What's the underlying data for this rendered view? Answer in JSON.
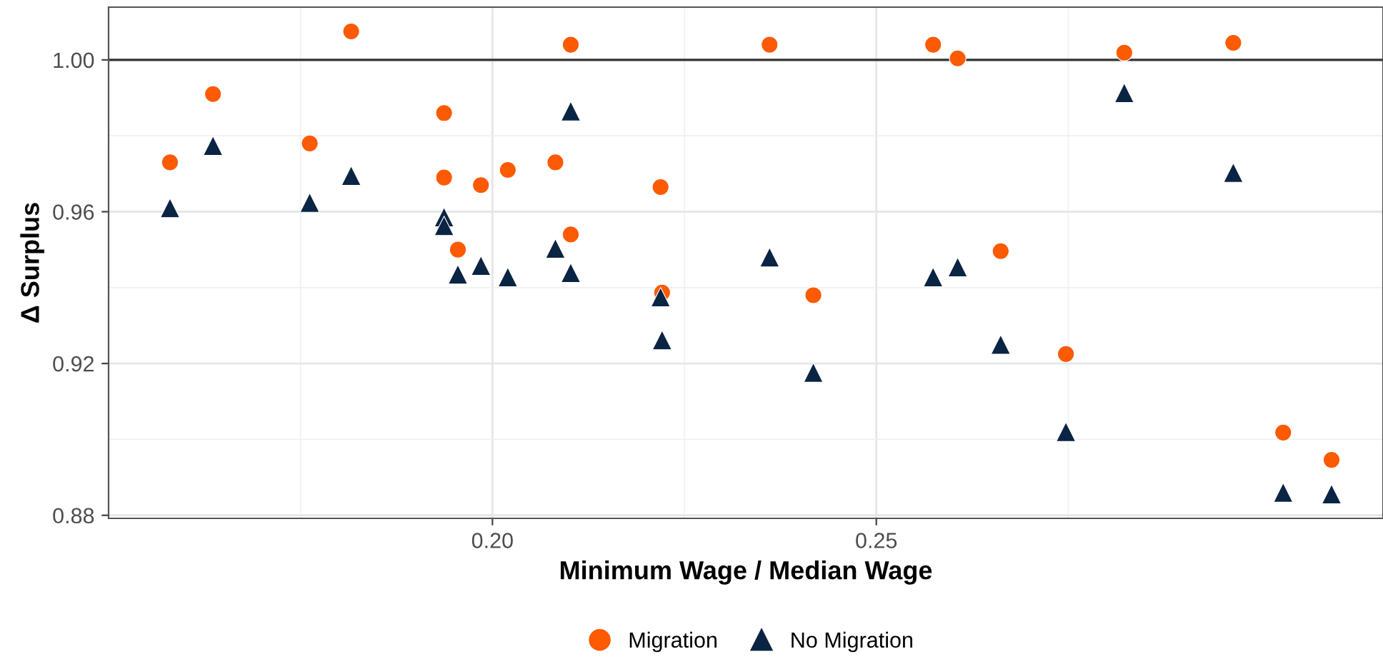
{
  "chart_data": {
    "type": "scatter",
    "xlabel": "Minimum Wage / Median Wage",
    "ylabel": "Δ Surplus",
    "xlim": [
      0.15,
      0.316
    ],
    "ylim": [
      0.8792,
      1.0139
    ],
    "xticks": [
      {
        "value": 0.2,
        "label": "0.20"
      },
      {
        "value": 0.25,
        "label": "0.25"
      }
    ],
    "yticks": [
      {
        "value": 0.88,
        "label": "0.88"
      },
      {
        "value": 0.92,
        "label": "0.92"
      },
      {
        "value": 0.96,
        "label": "0.96"
      },
      {
        "value": 1.0,
        "label": "1.00"
      }
    ],
    "grid": true,
    "legend": "bottom",
    "ref_lines": [
      {
        "axis": "y",
        "value": 1.0,
        "label": null,
        "color": "#333333"
      }
    ],
    "series": [
      {
        "name": "Migration",
        "color": "#fc5a03",
        "marker": "circle",
        "x": [
          0.158,
          0.1636,
          0.1762,
          0.1816,
          0.1937,
          0.1937,
          0.1955,
          0.1985,
          0.202,
          0.2082,
          0.2102,
          0.2102,
          0.2219,
          0.2221,
          0.2361,
          0.2418,
          0.2574,
          0.2606,
          0.2662,
          0.2747,
          0.2823,
          0.2965,
          0.303,
          0.3093
        ],
        "values": [
          0.973,
          0.991,
          0.978,
          1.0075,
          0.986,
          0.969,
          0.95,
          0.967,
          0.971,
          0.973,
          0.954,
          1.004,
          0.9665,
          0.9387,
          1.004,
          0.938,
          1.004,
          1.0004,
          0.9496,
          0.9225,
          1.0019,
          1.0045,
          0.9018,
          0.8946
        ]
      },
      {
        "name": "No Migration",
        "color": "#0a2444",
        "marker": "triangle",
        "x": [
          0.158,
          0.1636,
          0.1762,
          0.1816,
          0.1937,
          0.1937,
          0.1955,
          0.1985,
          0.202,
          0.2082,
          0.2102,
          0.2102,
          0.2219,
          0.2221,
          0.2361,
          0.2418,
          0.2574,
          0.2606,
          0.2662,
          0.2747,
          0.2823,
          0.2965,
          0.303,
          0.3093
        ],
        "values": [
          0.961,
          0.9774,
          0.9624,
          0.9695,
          0.9586,
          0.9563,
          0.9435,
          0.9458,
          0.9428,
          0.9503,
          0.9439,
          0.9865,
          0.9375,
          0.9262,
          0.948,
          0.9176,
          0.9428,
          0.9454,
          0.925,
          0.902,
          0.9913,
          0.9703,
          0.886,
          0.8856
        ]
      }
    ]
  }
}
